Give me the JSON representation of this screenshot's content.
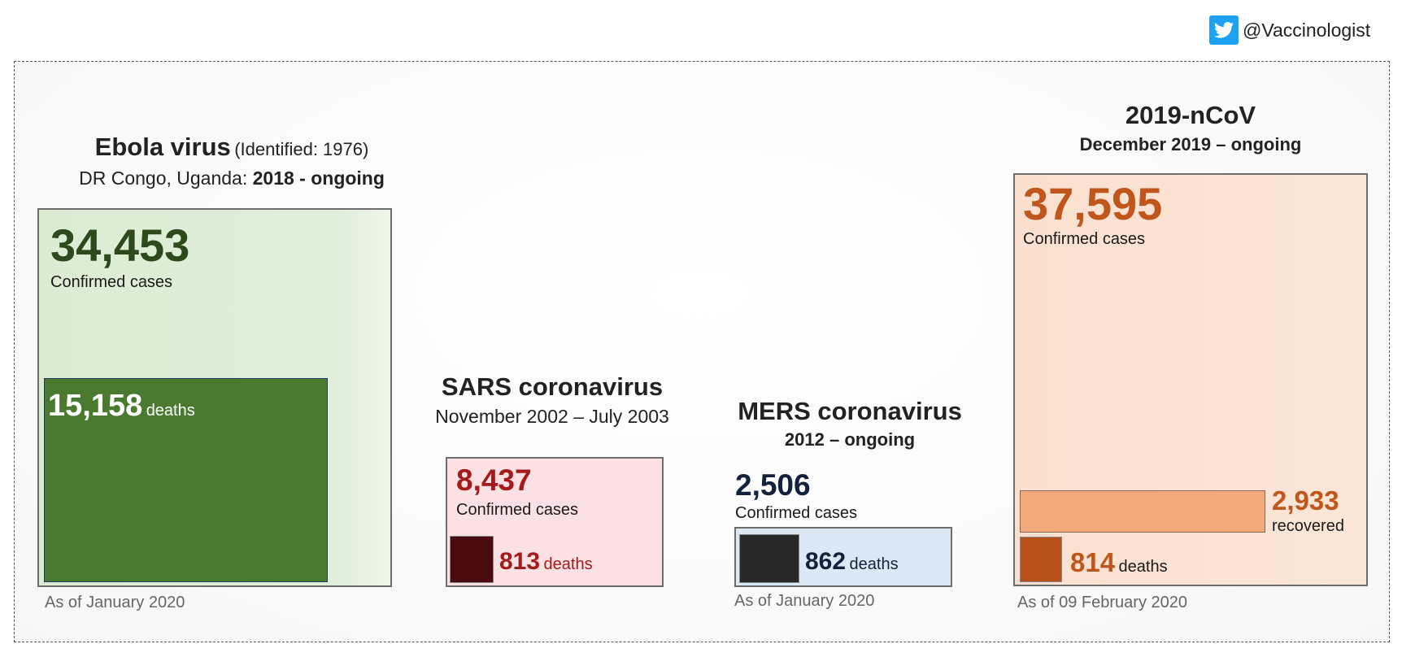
{
  "handle": {
    "text": "@Vaccinologist",
    "icon": "twitter-bird-icon"
  },
  "chart_data": {
    "type": "area",
    "unit": "cases",
    "panels": [
      {
        "name": "Ebola virus",
        "identified": "(Identified: 1976)",
        "region": "DR Congo, Uganda:",
        "period": "2018 - ongoing",
        "confirmed": 34453,
        "confirmed_text": "34,453",
        "confirmed_label": "Confirmed cases",
        "deaths": 15158,
        "deaths_text": "15,158",
        "deaths_label": "deaths",
        "note": "As of January 2020",
        "colors": {
          "confirmed_bg": "#dfeed6",
          "deaths_bg": "#4a7a2f",
          "number": "#2e4a1d"
        }
      },
      {
        "name": "SARS coronavirus",
        "period": "November 2002 – July 2003",
        "confirmed": 8437,
        "confirmed_text": "8,437",
        "confirmed_label": "Confirmed cases",
        "deaths": 813,
        "deaths_text": "813",
        "deaths_label": "deaths",
        "colors": {
          "confirmed_bg": "#fce1e4",
          "deaths_bg": "#4a0a0e",
          "number": "#a51a1a"
        }
      },
      {
        "name": "MERS coronavirus",
        "period": "2012 – ongoing",
        "confirmed": 2506,
        "confirmed_text": "2,506",
        "confirmed_label": "Confirmed cases",
        "deaths": 862,
        "deaths_text": "862",
        "deaths_label": "deaths",
        "note": "As of January 2020",
        "colors": {
          "confirmed_bg": "#dbe9f6",
          "deaths_bg": "#282828",
          "number": "#14213d"
        }
      },
      {
        "name": "2019-nCoV",
        "period": "December 2019 – ongoing",
        "confirmed": 37595,
        "confirmed_text": "37,595",
        "confirmed_label": "Confirmed cases",
        "recovered": 2933,
        "recovered_text": "2,933",
        "recovered_label": "recovered",
        "deaths": 814,
        "deaths_text": "814",
        "deaths_label": "deaths",
        "note": "As of 09 February 2020",
        "colors": {
          "confirmed_bg": "#fbe2d2",
          "recovered_bg": "#f2aa7c",
          "deaths_bg": "#b8501a",
          "number": "#c0561c"
        }
      }
    ]
  }
}
